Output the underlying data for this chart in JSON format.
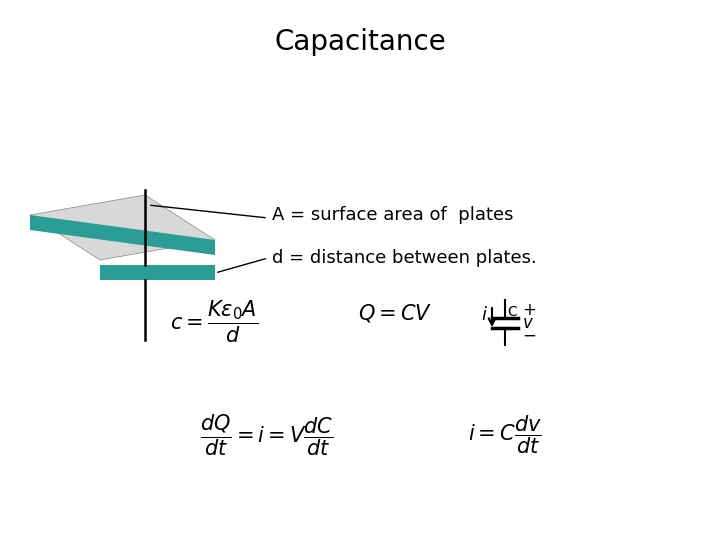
{
  "title": "Capacitance",
  "title_fontsize": 20,
  "title_fontweight": "normal",
  "bg_color": "#ffffff",
  "teal_color": "#2a9d96",
  "text_color": "#000000",
  "label_A": "A = surface area of  plates",
  "label_d": "d = distance between plates.",
  "formula1": "$c = \\dfrac{K\\varepsilon_0 A}{d}$",
  "formula2": "$Q = CV$",
  "formula3": "$\\dfrac{dQ}{dt} = i = V\\dfrac{dC}{dt}$",
  "formula4": "$i = C\\dfrac{dv}{dt}$"
}
